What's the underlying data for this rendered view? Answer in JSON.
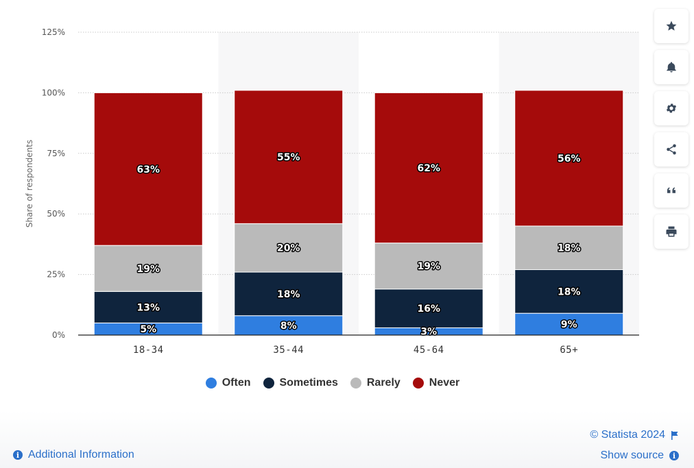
{
  "chart_data": {
    "type": "bar",
    "stacked": true,
    "categories": [
      "18-34",
      "35-44",
      "45-64",
      "65+"
    ],
    "series": [
      {
        "name": "Often",
        "color": "#2f7ee0",
        "values": [
          5,
          8,
          3,
          9
        ],
        "labels": [
          "5%",
          "8%",
          "3%",
          "9%"
        ]
      },
      {
        "name": "Sometimes",
        "color": "#0f243d",
        "values": [
          13,
          18,
          16,
          18
        ],
        "labels": [
          "13%",
          "18%",
          "16%",
          "18%"
        ]
      },
      {
        "name": "Rarely",
        "color": "#bababa",
        "values": [
          19,
          20,
          19,
          18
        ],
        "labels": [
          "19%",
          "20%",
          "19%",
          "18%"
        ]
      },
      {
        "name": "Never",
        "color": "#a50b0b",
        "values": [
          63,
          55,
          62,
          56
        ],
        "labels": [
          "63%",
          "55%",
          "62%",
          "56%"
        ]
      }
    ],
    "ylabel": "Share of respondents",
    "xlabel": "",
    "ylim": [
      0,
      125
    ],
    "yticks": [
      0,
      25,
      50,
      75,
      100,
      125
    ],
    "ytick_labels": [
      "0%",
      "25%",
      "50%",
      "75%",
      "100%",
      "125%"
    ],
    "grid": true,
    "legend_position": "bottom"
  },
  "toolbar": {
    "icons": [
      "star-icon",
      "bell-icon",
      "gear-icon",
      "share-icon",
      "quote-icon",
      "print-icon"
    ]
  },
  "footer": {
    "copyright": "© Statista 2024",
    "show_source": "Show source",
    "additional_info": "Additional Information"
  },
  "colors": {
    "link": "#2a6fc9",
    "toolbar_icon": "#3b4a5c"
  }
}
